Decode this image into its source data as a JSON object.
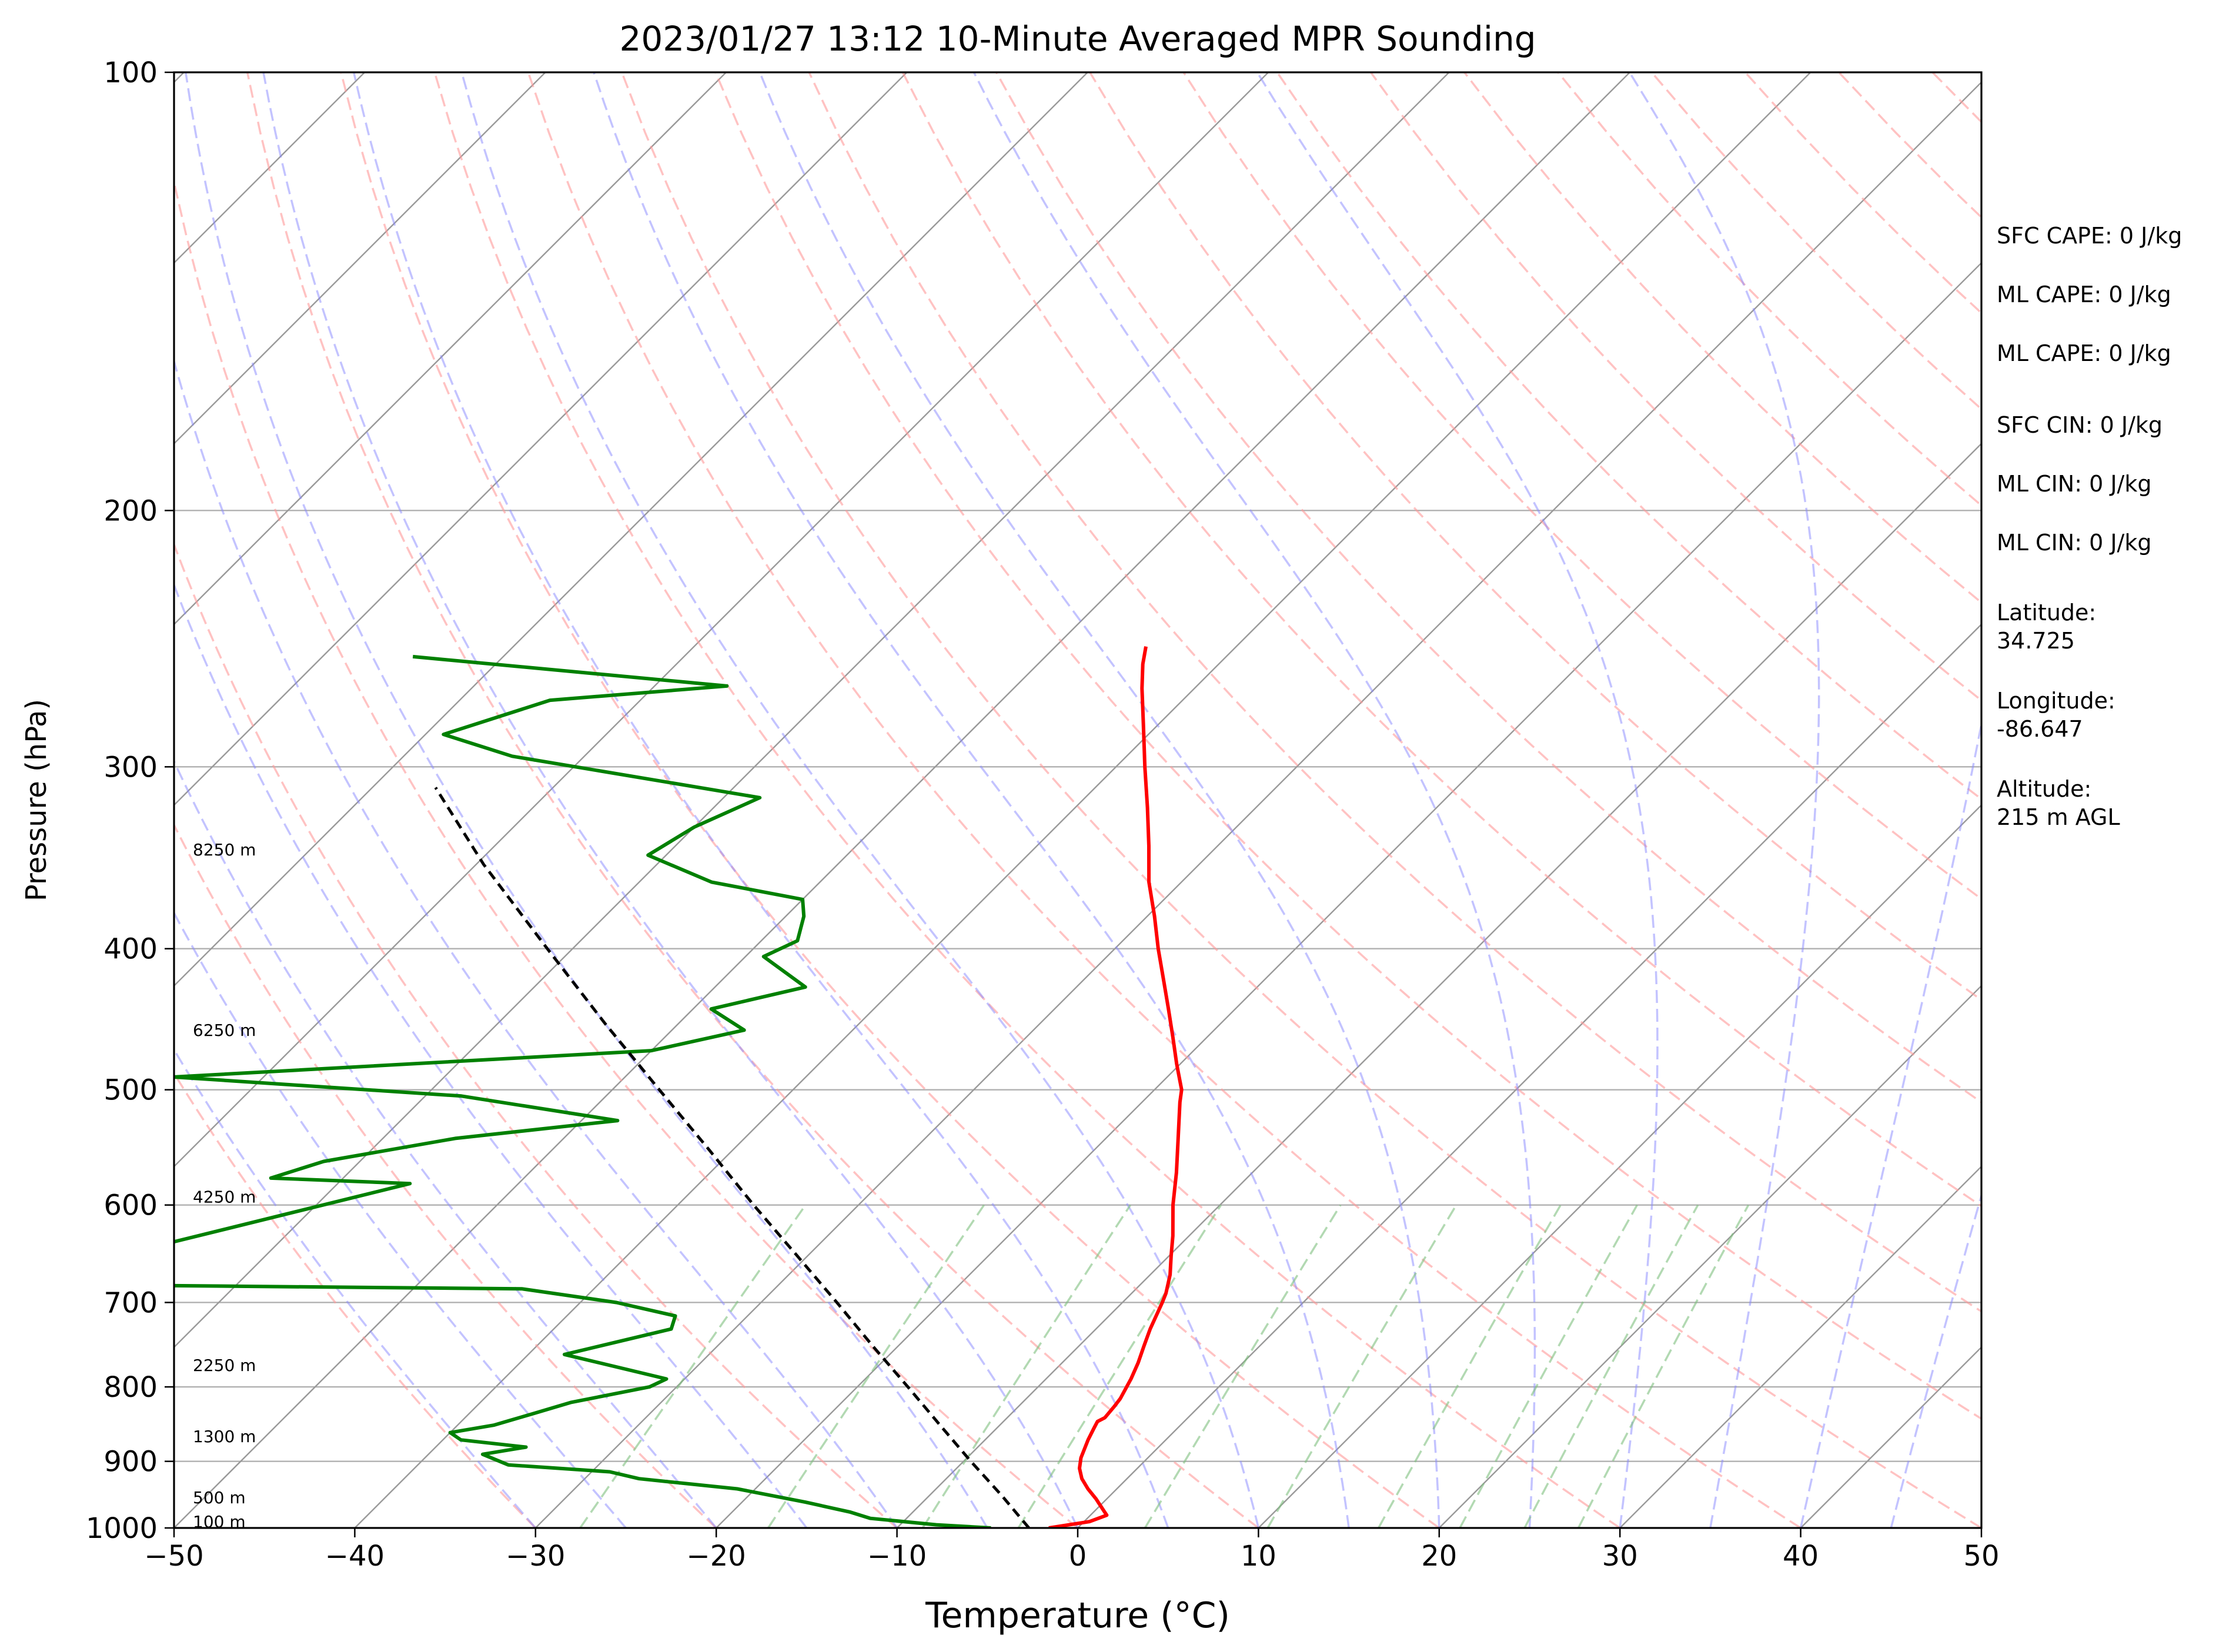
{
  "chart_data": {
    "type": "line",
    "title": "2023/01/27 13:12 10-Minute Averaged MPR Sounding",
    "xlabel": "Temperature (°C)",
    "ylabel": "Pressure (hPa)",
    "xlim": [
      -50,
      50
    ],
    "ylim": [
      1000,
      100
    ],
    "y_scale": "log",
    "skew_t": true,
    "grid": true,
    "x_ticks": [
      -50,
      -40,
      -30,
      -20,
      -10,
      0,
      10,
      20,
      30,
      40,
      50
    ],
    "x_tick_labels": [
      "−50",
      "−40",
      "−30",
      "−20",
      "−10",
      "0",
      "10",
      "20",
      "30",
      "40",
      "50"
    ],
    "y_ticks": [
      100,
      200,
      300,
      400,
      500,
      600,
      700,
      800,
      900,
      1000
    ],
    "y_tick_labels": [
      "100",
      "200",
      "300",
      "400",
      "500",
      "600",
      "700",
      "800",
      "900",
      "1000"
    ],
    "series": [
      {
        "key": "temperature",
        "color": "#ff0000",
        "points": [
          [
            1000,
            -1.6
          ],
          [
            990,
            0.3
          ],
          [
            980,
            0.9
          ],
          [
            970,
            0.3
          ],
          [
            955,
            -0.6
          ],
          [
            940,
            -1.6
          ],
          [
            925,
            -2.5
          ],
          [
            910,
            -3.2
          ],
          [
            895,
            -3.7
          ],
          [
            870,
            -4.3
          ],
          [
            855,
            -4.6
          ],
          [
            845,
            -4.8
          ],
          [
            840,
            -4.6
          ],
          [
            825,
            -4.7
          ],
          [
            815,
            -4.8
          ],
          [
            800,
            -5.1
          ],
          [
            790,
            -5.3
          ],
          [
            770,
            -5.8
          ],
          [
            750,
            -6.4
          ],
          [
            730,
            -7.0
          ],
          [
            700,
            -7.8
          ],
          [
            690,
            -8.1
          ],
          [
            670,
            -8.9
          ],
          [
            650,
            -9.9
          ],
          [
            630,
            -10.9
          ],
          [
            600,
            -12.6
          ],
          [
            570,
            -14.2
          ],
          [
            540,
            -16.0
          ],
          [
            510,
            -17.9
          ],
          [
            500,
            -18.5
          ],
          [
            480,
            -20.2
          ],
          [
            460,
            -21.9
          ],
          [
            440,
            -23.7
          ],
          [
            420,
            -25.6
          ],
          [
            400,
            -27.6
          ],
          [
            380,
            -29.6
          ],
          [
            360,
            -31.8
          ],
          [
            340,
            -33.8
          ],
          [
            320,
            -36.0
          ],
          [
            300,
            -38.4
          ],
          [
            280,
            -40.9
          ],
          [
            265,
            -42.9
          ],
          [
            255,
            -44.2
          ],
          [
            248,
            -45.0
          ]
        ]
      },
      {
        "key": "dewpoint",
        "color": "#008000",
        "points": [
          [
            1000,
            -4.8
          ],
          [
            995,
            -8.0
          ],
          [
            985,
            -12.0
          ],
          [
            975,
            -13.5
          ],
          [
            960,
            -16.5
          ],
          [
            940,
            -21.0
          ],
          [
            925,
            -27.0
          ],
          [
            915,
            -29.0
          ],
          [
            905,
            -35.0
          ],
          [
            890,
            -37.0
          ],
          [
            880,
            -35.0
          ],
          [
            870,
            -39.0
          ],
          [
            860,
            -40.0
          ],
          [
            850,
            -38.0
          ],
          [
            835,
            -36.5
          ],
          [
            820,
            -35.0
          ],
          [
            800,
            -31.5
          ],
          [
            790,
            -31.0
          ],
          [
            760,
            -38.0
          ],
          [
            730,
            -33.5
          ],
          [
            715,
            -34.0
          ],
          [
            700,
            -38.0
          ],
          [
            685,
            -44.0
          ],
          [
            680,
            -73.0
          ],
          [
            580,
            -56.0
          ],
          [
            575,
            -64.0
          ],
          [
            560,
            -62.0
          ],
          [
            540,
            -56.0
          ],
          [
            525,
            -48.0
          ],
          [
            505,
            -58.0
          ],
          [
            490,
            -75.0
          ],
          [
            470,
            -50.0
          ],
          [
            455,
            -46.0
          ],
          [
            440,
            -49.0
          ],
          [
            425,
            -45.0
          ],
          [
            405,
            -49.0
          ],
          [
            395,
            -48.0
          ],
          [
            380,
            -49.0
          ],
          [
            370,
            -50.0
          ],
          [
            360,
            -56.0
          ],
          [
            345,
            -61.0
          ],
          [
            330,
            -60.0
          ],
          [
            315,
            -58.0
          ],
          [
            295,
            -74.0
          ],
          [
            285,
            -79.0
          ],
          [
            270,
            -75.0
          ],
          [
            264,
            -66.0
          ],
          [
            252,
            -85.0
          ]
        ]
      },
      {
        "key": "parcel",
        "color": "#000000",
        "dashed": true,
        "points": [
          [
            1000,
            -2.7
          ],
          [
            950,
            -6.0
          ],
          [
            900,
            -9.6
          ],
          [
            850,
            -13.3
          ],
          [
            800,
            -17.2
          ],
          [
            750,
            -21.4
          ],
          [
            700,
            -25.8
          ],
          [
            650,
            -30.6
          ],
          [
            600,
            -35.8
          ],
          [
            550,
            -41.3
          ],
          [
            500,
            -47.4
          ],
          [
            450,
            -54.1
          ],
          [
            400,
            -61.4
          ],
          [
            350,
            -69.6
          ],
          [
            310,
            -76.5
          ]
        ]
      }
    ],
    "height_labels": [
      {
        "pressure": 990,
        "label": "100 m"
      },
      {
        "pressure": 953,
        "label": "500 m"
      },
      {
        "pressure": 865,
        "label": "1300 m"
      },
      {
        "pressure": 773,
        "label": "2250 m"
      },
      {
        "pressure": 592,
        "label": "4250 m"
      },
      {
        "pressure": 455,
        "label": "6250 m"
      },
      {
        "pressure": 342,
        "label": "8250 m"
      }
    ],
    "background": {
      "dry_adiabat_color": "#ff9999",
      "moist_adiabat_color": "#8888ff",
      "mixing_ratio_color": "#7fbf7f",
      "isotherm_color": "#999999"
    },
    "annotations": [
      "SFC CAPE: 0 J/kg",
      "ML CAPE: 0 J/kg",
      "ML CAPE: 0 J/kg",
      "SFC CIN: 0 J/kg",
      "ML CIN: 0 J/kg",
      "ML CIN: 0 J/kg",
      "Latitude:\n34.725",
      "Longitude:\n-86.647",
      "Altitude:\n215 m AGL"
    ]
  }
}
